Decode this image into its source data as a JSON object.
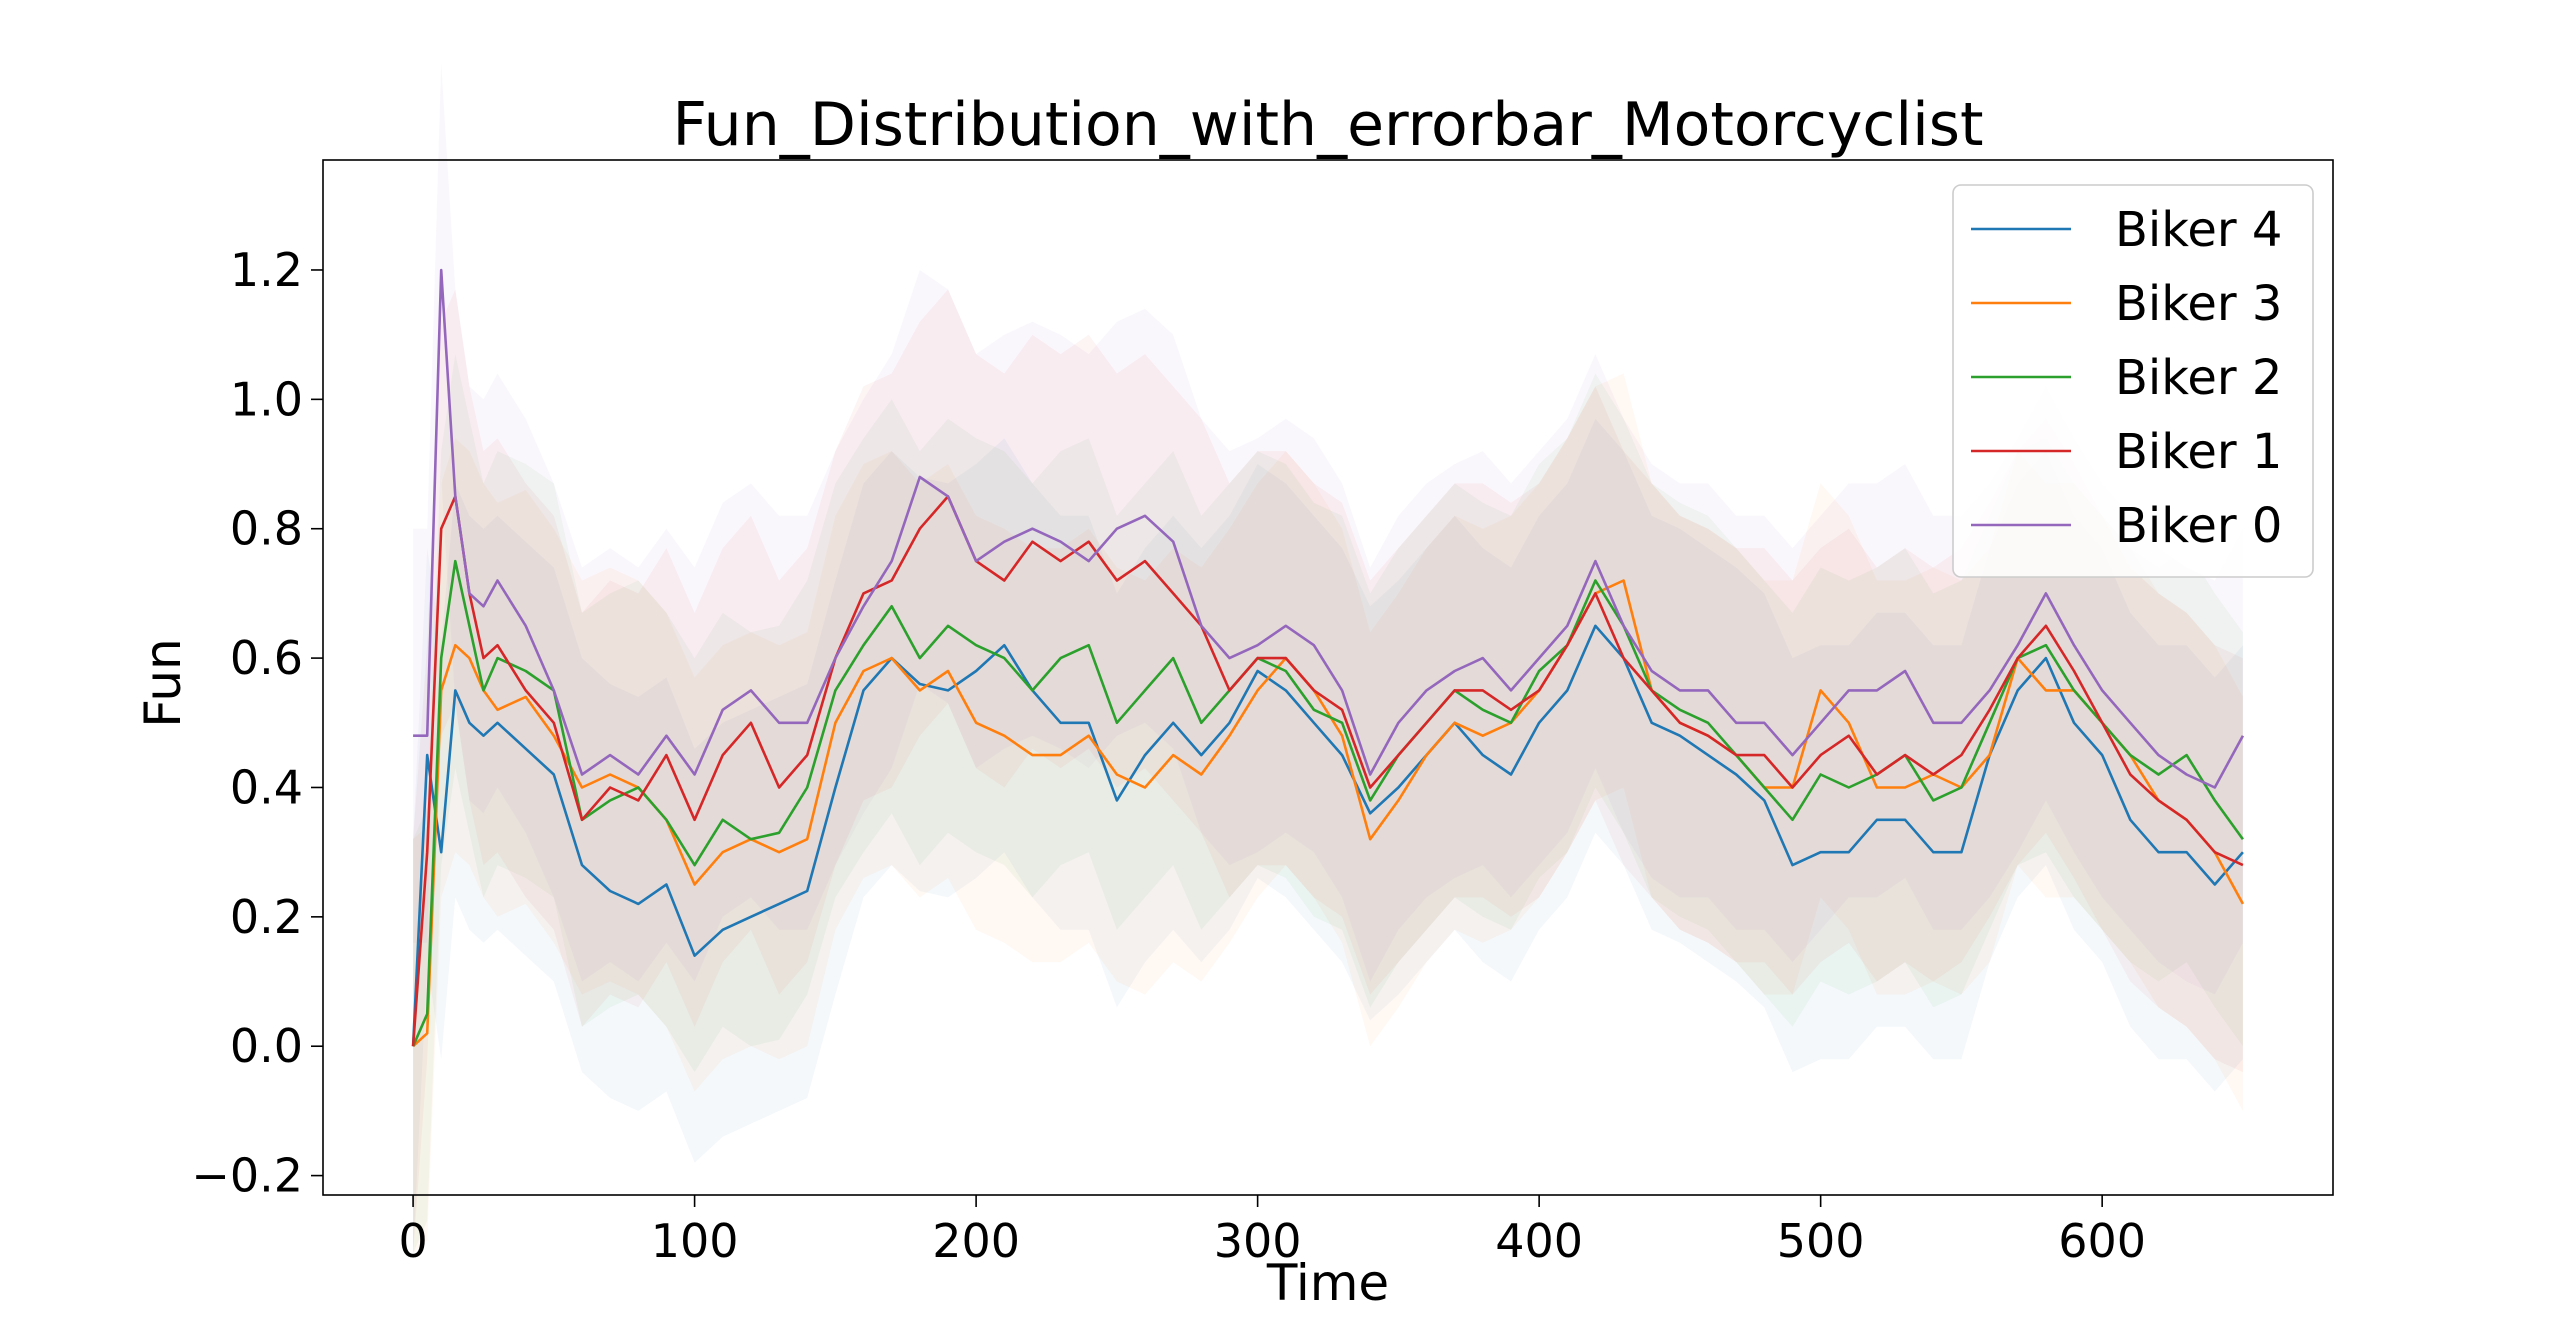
{
  "chart_data": {
    "type": "line",
    "title": "Fun_Distribution_with_errorbar_Motorcyclist",
    "xlabel": "Time",
    "ylabel": "Fun",
    "xlim": [
      -32,
      682
    ],
    "ylim": [
      -0.23,
      1.37
    ],
    "x_ticks": [
      0,
      100,
      200,
      300,
      400,
      500,
      600
    ],
    "x_tick_labels": [
      "0",
      "100",
      "200",
      "300",
      "400",
      "500",
      "600"
    ],
    "y_ticks": [
      -0.2,
      0.0,
      0.2,
      0.4,
      0.6,
      0.8,
      1.0,
      1.2
    ],
    "y_tick_labels": [
      "−0.2",
      "0.0",
      "0.2",
      "0.4",
      "0.6",
      "0.8",
      "1.0",
      "1.2"
    ],
    "grid": false,
    "legend_position": "top-right",
    "error_band_halfwidth": 0.32,
    "series": [
      {
        "name": "Biker 4",
        "color": "#1f77b4",
        "x": [
          0,
          5,
          10,
          15,
          20,
          25,
          30,
          40,
          50,
          60,
          70,
          80,
          90,
          100,
          110,
          120,
          130,
          140,
          150,
          160,
          170,
          180,
          190,
          200,
          210,
          220,
          230,
          240,
          250,
          260,
          270,
          280,
          290,
          300,
          310,
          320,
          330,
          340,
          350,
          360,
          370,
          380,
          390,
          400,
          410,
          420,
          430,
          440,
          450,
          460,
          470,
          480,
          490,
          500,
          510,
          520,
          530,
          540,
          550,
          560,
          570,
          580,
          590,
          600,
          610,
          620,
          630,
          640,
          650
        ],
        "y": [
          0.0,
          0.45,
          0.3,
          0.55,
          0.5,
          0.48,
          0.5,
          0.46,
          0.42,
          0.28,
          0.24,
          0.22,
          0.25,
          0.14,
          0.18,
          0.2,
          0.22,
          0.24,
          0.4,
          0.55,
          0.6,
          0.56,
          0.55,
          0.58,
          0.62,
          0.55,
          0.5,
          0.5,
          0.38,
          0.45,
          0.5,
          0.45,
          0.5,
          0.58,
          0.55,
          0.5,
          0.45,
          0.36,
          0.4,
          0.45,
          0.5,
          0.45,
          0.42,
          0.5,
          0.55,
          0.65,
          0.6,
          0.5,
          0.48,
          0.45,
          0.42,
          0.38,
          0.28,
          0.3,
          0.3,
          0.35,
          0.35,
          0.3,
          0.3,
          0.45,
          0.55,
          0.6,
          0.5,
          0.45,
          0.35,
          0.3,
          0.3,
          0.25,
          0.3
        ]
      },
      {
        "name": "Biker 3",
        "color": "#ff7f0e",
        "x": [
          0,
          5,
          10,
          15,
          20,
          25,
          30,
          40,
          50,
          60,
          70,
          80,
          90,
          100,
          110,
          120,
          130,
          140,
          150,
          160,
          170,
          180,
          190,
          200,
          210,
          220,
          230,
          240,
          250,
          260,
          270,
          280,
          290,
          300,
          310,
          320,
          330,
          340,
          350,
          360,
          370,
          380,
          390,
          400,
          410,
          420,
          430,
          440,
          450,
          460,
          470,
          480,
          490,
          500,
          510,
          520,
          530,
          540,
          550,
          560,
          570,
          580,
          590,
          600,
          610,
          620,
          630,
          640,
          650
        ],
        "y": [
          0.0,
          0.02,
          0.55,
          0.62,
          0.6,
          0.55,
          0.52,
          0.54,
          0.48,
          0.4,
          0.42,
          0.4,
          0.35,
          0.25,
          0.3,
          0.32,
          0.3,
          0.32,
          0.5,
          0.58,
          0.6,
          0.55,
          0.58,
          0.5,
          0.48,
          0.45,
          0.45,
          0.48,
          0.42,
          0.4,
          0.45,
          0.42,
          0.48,
          0.55,
          0.6,
          0.55,
          0.48,
          0.32,
          0.38,
          0.45,
          0.5,
          0.48,
          0.5,
          0.55,
          0.62,
          0.7,
          0.72,
          0.55,
          0.5,
          0.48,
          0.45,
          0.4,
          0.4,
          0.55,
          0.5,
          0.4,
          0.4,
          0.42,
          0.4,
          0.45,
          0.6,
          0.55,
          0.55,
          0.5,
          0.45,
          0.38,
          0.35,
          0.3,
          0.22
        ]
      },
      {
        "name": "Biker 2",
        "color": "#2ca02c",
        "x": [
          0,
          5,
          10,
          15,
          20,
          25,
          30,
          40,
          50,
          60,
          70,
          80,
          90,
          100,
          110,
          120,
          130,
          140,
          150,
          160,
          170,
          180,
          190,
          200,
          210,
          220,
          230,
          240,
          250,
          260,
          270,
          280,
          290,
          300,
          310,
          320,
          330,
          340,
          350,
          360,
          370,
          380,
          390,
          400,
          410,
          420,
          430,
          440,
          450,
          460,
          470,
          480,
          490,
          500,
          510,
          520,
          530,
          540,
          550,
          560,
          570,
          580,
          590,
          600,
          610,
          620,
          630,
          640,
          650
        ],
        "y": [
          0.0,
          0.05,
          0.6,
          0.75,
          0.65,
          0.55,
          0.6,
          0.58,
          0.55,
          0.35,
          0.38,
          0.4,
          0.35,
          0.28,
          0.35,
          0.32,
          0.33,
          0.4,
          0.55,
          0.62,
          0.68,
          0.6,
          0.65,
          0.62,
          0.6,
          0.55,
          0.6,
          0.62,
          0.5,
          0.55,
          0.6,
          0.5,
          0.55,
          0.6,
          0.58,
          0.52,
          0.5,
          0.38,
          0.45,
          0.5,
          0.55,
          0.52,
          0.5,
          0.58,
          0.62,
          0.72,
          0.65,
          0.55,
          0.52,
          0.5,
          0.45,
          0.4,
          0.35,
          0.42,
          0.4,
          0.42,
          0.45,
          0.38,
          0.4,
          0.5,
          0.6,
          0.62,
          0.55,
          0.5,
          0.45,
          0.42,
          0.45,
          0.38,
          0.32
        ]
      },
      {
        "name": "Biker 1",
        "color": "#d62728",
        "x": [
          0,
          5,
          10,
          15,
          20,
          25,
          30,
          40,
          50,
          60,
          70,
          80,
          90,
          100,
          110,
          120,
          130,
          140,
          150,
          160,
          170,
          180,
          190,
          200,
          210,
          220,
          230,
          240,
          250,
          260,
          270,
          280,
          290,
          300,
          310,
          320,
          330,
          340,
          350,
          360,
          370,
          380,
          390,
          400,
          410,
          420,
          430,
          440,
          450,
          460,
          470,
          480,
          490,
          500,
          510,
          520,
          530,
          540,
          550,
          560,
          570,
          580,
          590,
          600,
          610,
          620,
          630,
          640,
          650
        ],
        "y": [
          0.0,
          0.3,
          0.8,
          0.85,
          0.7,
          0.6,
          0.62,
          0.55,
          0.5,
          0.35,
          0.4,
          0.38,
          0.45,
          0.35,
          0.45,
          0.5,
          0.4,
          0.45,
          0.6,
          0.7,
          0.72,
          0.8,
          0.85,
          0.75,
          0.72,
          0.78,
          0.75,
          0.78,
          0.72,
          0.75,
          0.7,
          0.65,
          0.55,
          0.6,
          0.6,
          0.55,
          0.52,
          0.4,
          0.45,
          0.5,
          0.55,
          0.55,
          0.52,
          0.55,
          0.62,
          0.7,
          0.6,
          0.55,
          0.5,
          0.48,
          0.45,
          0.45,
          0.4,
          0.45,
          0.48,
          0.42,
          0.45,
          0.42,
          0.45,
          0.52,
          0.6,
          0.65,
          0.58,
          0.5,
          0.42,
          0.38,
          0.35,
          0.3,
          0.28
        ]
      },
      {
        "name": "Biker 0",
        "color": "#9467bd",
        "x": [
          0,
          5,
          10,
          15,
          20,
          25,
          30,
          40,
          50,
          60,
          70,
          80,
          90,
          100,
          110,
          120,
          130,
          140,
          150,
          160,
          170,
          180,
          190,
          200,
          210,
          220,
          230,
          240,
          250,
          260,
          270,
          280,
          290,
          300,
          310,
          320,
          330,
          340,
          350,
          360,
          370,
          380,
          390,
          400,
          410,
          420,
          430,
          440,
          450,
          460,
          470,
          480,
          490,
          500,
          510,
          520,
          530,
          540,
          550,
          560,
          570,
          580,
          590,
          600,
          610,
          620,
          630,
          640,
          650
        ],
        "y": [
          0.48,
          0.48,
          1.2,
          0.85,
          0.7,
          0.68,
          0.72,
          0.65,
          0.55,
          0.42,
          0.45,
          0.42,
          0.48,
          0.42,
          0.52,
          0.55,
          0.5,
          0.5,
          0.6,
          0.68,
          0.75,
          0.88,
          0.85,
          0.75,
          0.78,
          0.8,
          0.78,
          0.75,
          0.8,
          0.82,
          0.78,
          0.65,
          0.6,
          0.62,
          0.65,
          0.62,
          0.55,
          0.42,
          0.5,
          0.55,
          0.58,
          0.6,
          0.55,
          0.6,
          0.65,
          0.75,
          0.65,
          0.58,
          0.55,
          0.55,
          0.5,
          0.5,
          0.45,
          0.5,
          0.55,
          0.55,
          0.58,
          0.5,
          0.5,
          0.55,
          0.62,
          0.7,
          0.62,
          0.55,
          0.5,
          0.45,
          0.42,
          0.4,
          0.48
        ]
      }
    ]
  }
}
